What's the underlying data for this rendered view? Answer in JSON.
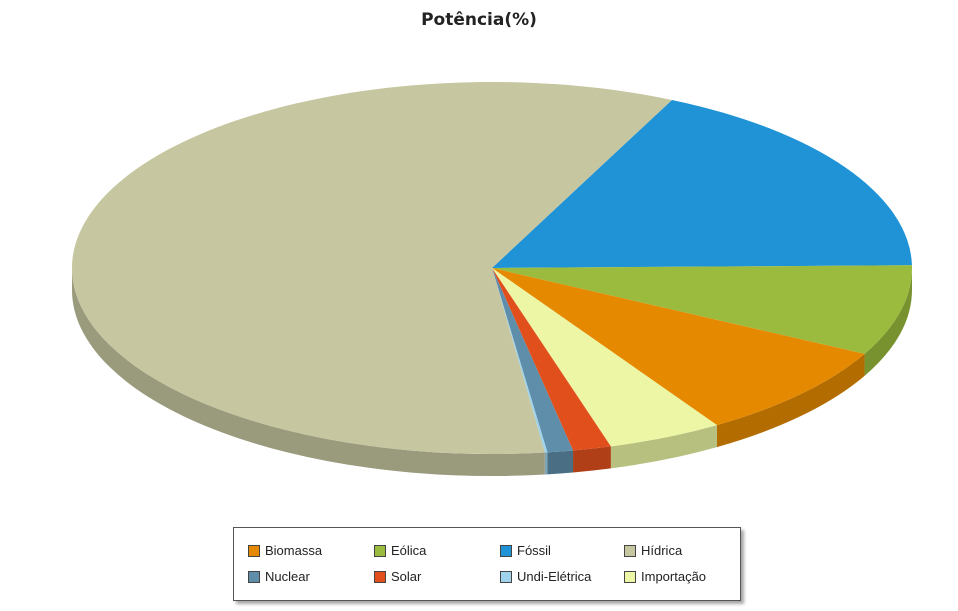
{
  "chart_data": {
    "type": "pie",
    "title": "Potência(%)",
    "categories": [
      "Biomassa",
      "Eólica",
      "Fóssil",
      "Hídrica",
      "Nuclear",
      "Solar",
      "Undi-Elétrica",
      "Importação"
    ],
    "values": [
      8.5,
      8.0,
      18.0,
      60.0,
      1.0,
      1.5,
      0.1,
      4.5
    ],
    "colors": [
      "#e58a00",
      "#9bbb3e",
      "#1f93d6",
      "#c6c6a0",
      "#5f8eaa",
      "#e1501c",
      "#9fd3ec",
      "#ecf6a4"
    ],
    "slice_order": [
      "Fóssil",
      "Eólica",
      "Biomassa",
      "Importação",
      "Solar",
      "Nuclear",
      "Undi-Elétrica",
      "Hídrica"
    ],
    "legend_position": "bottom",
    "style": "3d-tilted"
  }
}
